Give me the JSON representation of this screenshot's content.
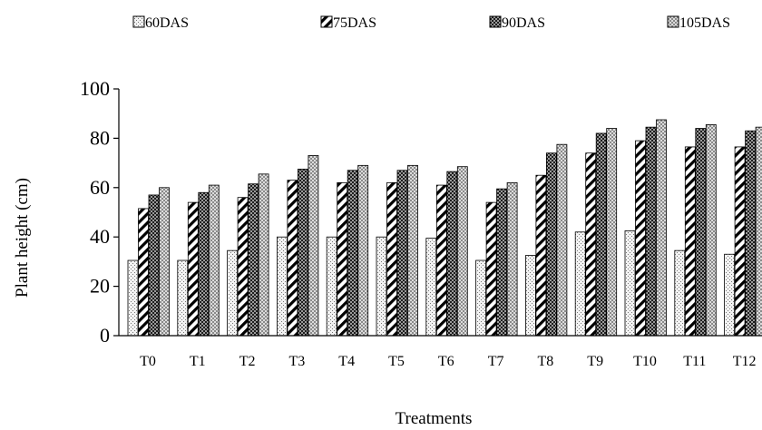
{
  "chart_data": {
    "type": "bar",
    "xlabel": "Treatments",
    "ylabel": "Plant height (cm)",
    "ylim": [
      0,
      100
    ],
    "yticks": [
      0,
      20,
      40,
      60,
      80,
      100
    ],
    "grid": false,
    "legend_position": "top",
    "categories": [
      "T0",
      "T1",
      "T2",
      "T3",
      "T4",
      "T5",
      "T6",
      "T7",
      "T8",
      "T9",
      "T10",
      "T11",
      "T12"
    ],
    "series": [
      {
        "name": "60DAS",
        "pattern": "dots",
        "values": [
          30.5,
          30.5,
          34.5,
          40,
          40,
          40,
          39.5,
          30.5,
          32.5,
          42,
          42.5,
          34.5,
          33
        ]
      },
      {
        "name": "75DAS",
        "pattern": "diagonal",
        "values": [
          51.5,
          54,
          56,
          63,
          62,
          62,
          61,
          54,
          65,
          74,
          79,
          76.5,
          76.5
        ]
      },
      {
        "name": "90DAS",
        "pattern": "crosshatch",
        "values": [
          57,
          58,
          61.5,
          67.5,
          67,
          67,
          66.5,
          59.5,
          74,
          82,
          84.5,
          84,
          83
        ]
      },
      {
        "name": "105DAS",
        "pattern": "checker",
        "values": [
          60,
          61,
          65.5,
          73,
          69,
          69,
          68.5,
          62,
          77.5,
          84,
          87.5,
          85.5,
          84.5
        ]
      }
    ]
  }
}
